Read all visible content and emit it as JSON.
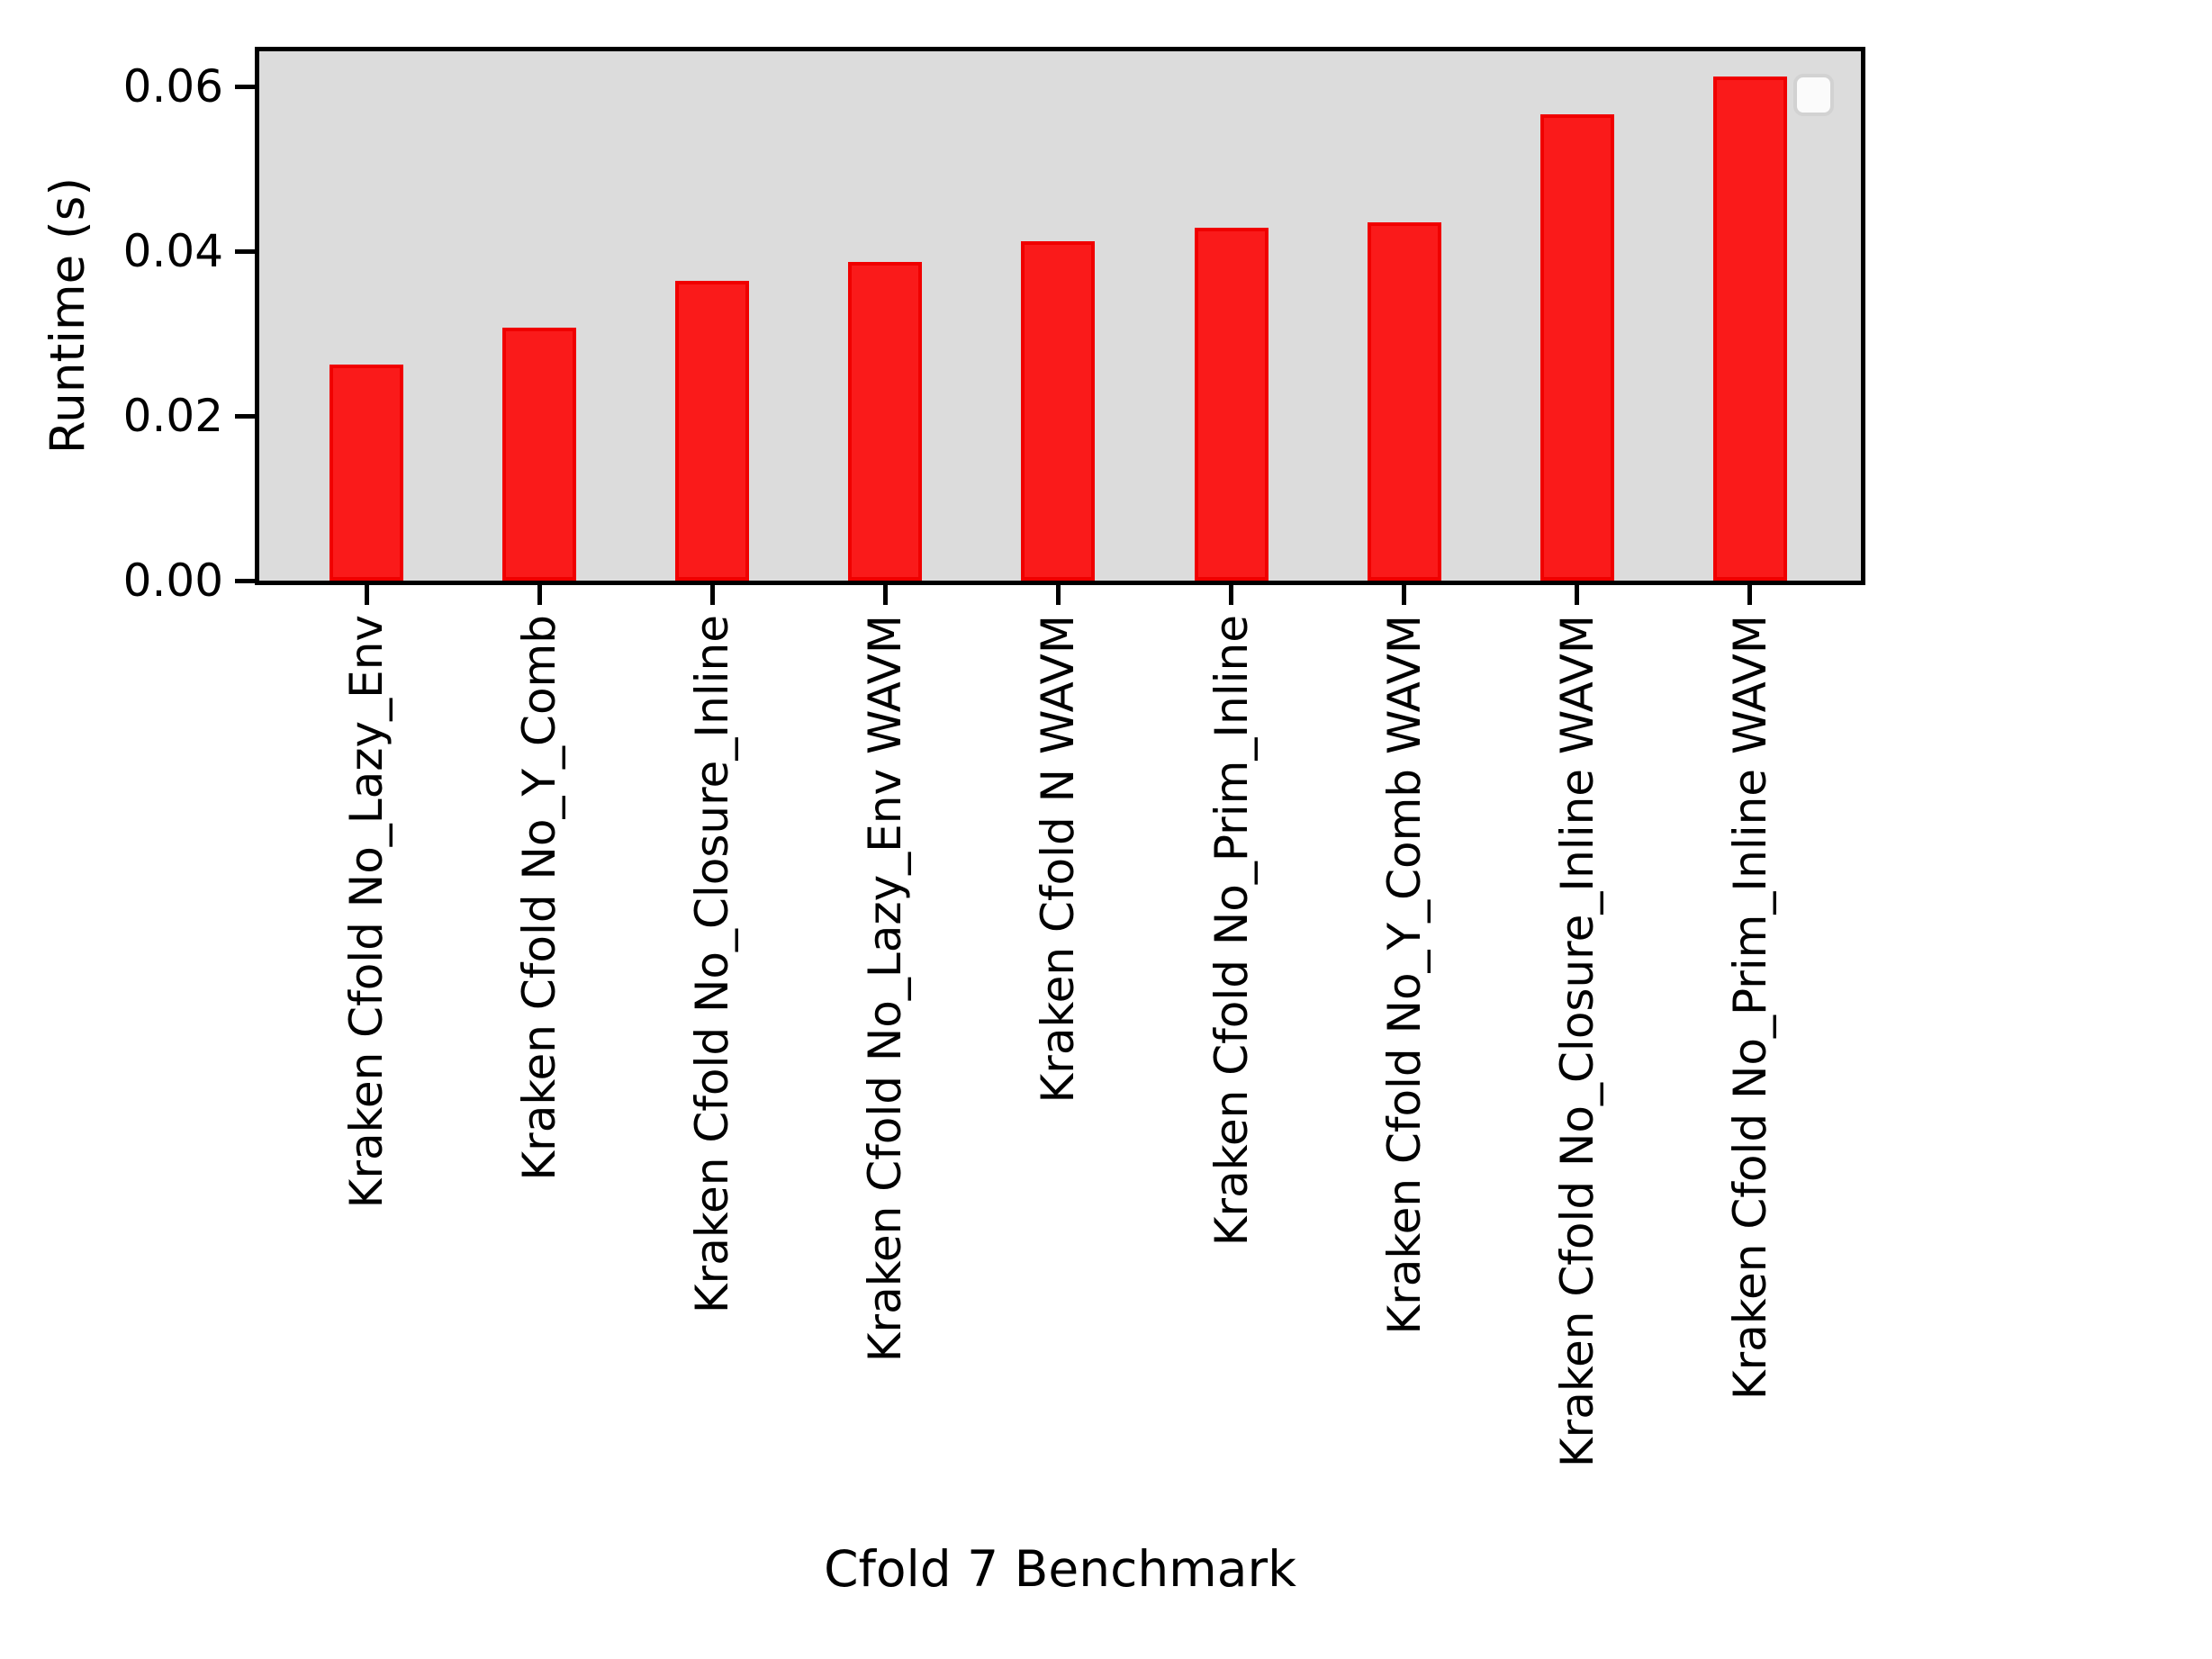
{
  "figure": {
    "background": "#ffffff"
  },
  "axes": {
    "plot_background": "#dcdcdc",
    "spine_color": "#000000",
    "tick_color": "#000000",
    "yticks": [
      {
        "label": "0.00",
        "value": 0.0
      },
      {
        "label": "0.02",
        "value": 0.02
      },
      {
        "label": "0.04",
        "value": 0.04
      },
      {
        "label": "0.06",
        "value": 0.06
      }
    ]
  },
  "legend": {
    "empty_box": true,
    "border_color": "#d2d2d2",
    "background": "#fbfbfb",
    "position": "upper right"
  },
  "chart_data": {
    "type": "bar",
    "title": "",
    "xlabel": "Cfold 7 Benchmark",
    "ylabel": "Runtime (s)",
    "categories": [
      "Kraken Cfold No_Lazy_Env",
      "Kraken Cfold No_Y_Comb",
      "Kraken Cfold No_Closure_Inline",
      "Kraken Cfold No_Lazy_Env WAVM",
      "Kraken Cfold N WAVM",
      "Kraken Cfold No_Prim_Inline",
      "Kraken Cfold No_Y_Comb WAVM",
      "Kraken Cfold No_Closure_Inline WAVM",
      "Kraken Cfold No_Prim_Inline WAVM"
    ],
    "values": [
      0.0262,
      0.0307,
      0.0364,
      0.0387,
      0.0412,
      0.0429,
      0.0435,
      0.0567,
      0.0612
    ],
    "ylim": [
      0,
      0.0643
    ],
    "yticks": [
      0.0,
      0.02,
      0.04,
      0.06
    ],
    "grid": false,
    "bar_color": "#fa1a1a",
    "bar_edge_color": "#f00000",
    "plot_background": "#dcdcdc",
    "legend_position": "upper right (empty)"
  }
}
